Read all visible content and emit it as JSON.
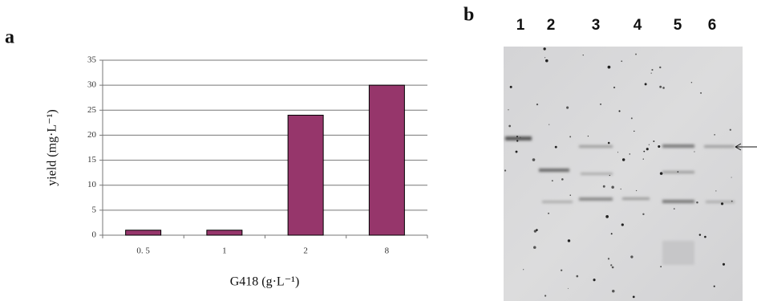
{
  "panel_labels": [
    "a",
    "b"
  ],
  "chart_data": {
    "type": "bar",
    "categories": [
      "0. 5",
      "1",
      "2",
      "8"
    ],
    "values": [
      1,
      1,
      24,
      30
    ],
    "color": "#96366b",
    "ylim": [
      0,
      35
    ],
    "yticks": [
      0,
      5,
      10,
      15,
      20,
      25,
      30,
      35
    ],
    "grid": true,
    "y_label": "yield (mg·L⁻¹)",
    "x_label": "G418 (g·L⁻¹)"
  },
  "gel": {
    "lanes": [
      "1",
      "2",
      "3",
      "4",
      "5",
      "6"
    ]
  }
}
